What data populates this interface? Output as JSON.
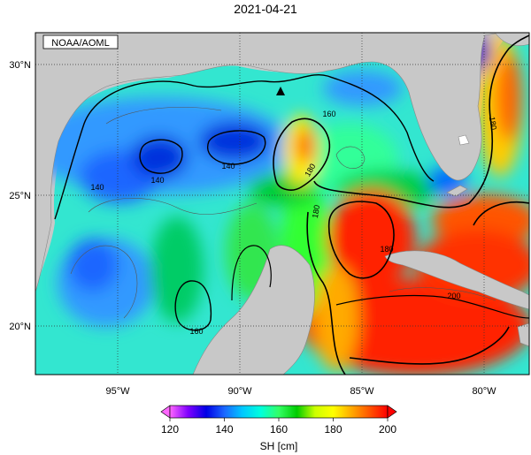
{
  "title": "2021-04-21",
  "credit": "NOAA/AOML",
  "lat_labels": [
    "30°N",
    "25°N",
    "20°N"
  ],
  "lon_labels": [
    "95°W",
    "90°W",
    "85°W",
    "80°W"
  ],
  "contour_labels": [
    "140",
    "140",
    "140",
    "160",
    "160",
    "180",
    "180",
    "180",
    "180",
    "200"
  ],
  "colorbar": {
    "ticks": [
      "120",
      "140",
      "160",
      "180",
      "200"
    ],
    "label": "SH [cm]",
    "range": [
      120,
      200
    ],
    "colors": [
      "#ff66ff",
      "#8000ff",
      "#0000e6",
      "#1a66ff",
      "#00c8ff",
      "#00ffdd",
      "#33ff66",
      "#00cc00",
      "#ccff00",
      "#ffff00",
      "#ffaa00",
      "#ff5500",
      "#ff0000"
    ]
  },
  "map": {
    "land_color": "#c8c8c8",
    "marker": "triangle"
  }
}
